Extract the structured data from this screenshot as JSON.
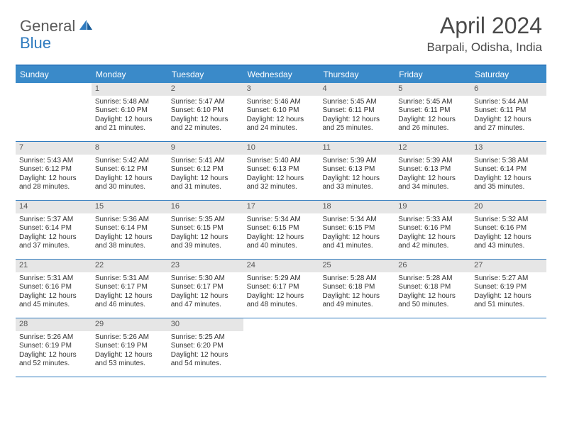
{
  "logo": {
    "general": "General",
    "blue": "Blue"
  },
  "header": {
    "title": "April 2024",
    "location": "Barpali, Odisha, India"
  },
  "colors": {
    "brand_blue": "#3a8ac9",
    "border_blue": "#2f7bbf",
    "daynum_bg": "#e6e6e6",
    "text": "#333333",
    "header_text": "#4a4a4a"
  },
  "daysOfWeek": [
    "Sunday",
    "Monday",
    "Tuesday",
    "Wednesday",
    "Thursday",
    "Friday",
    "Saturday"
  ],
  "weeks": [
    [
      {
        "empty": true
      },
      {
        "n": "1",
        "sr": "Sunrise: 5:48 AM",
        "ss": "Sunset: 6:10 PM",
        "d1": "Daylight: 12 hours",
        "d2": "and 21 minutes."
      },
      {
        "n": "2",
        "sr": "Sunrise: 5:47 AM",
        "ss": "Sunset: 6:10 PM",
        "d1": "Daylight: 12 hours",
        "d2": "and 22 minutes."
      },
      {
        "n": "3",
        "sr": "Sunrise: 5:46 AM",
        "ss": "Sunset: 6:10 PM",
        "d1": "Daylight: 12 hours",
        "d2": "and 24 minutes."
      },
      {
        "n": "4",
        "sr": "Sunrise: 5:45 AM",
        "ss": "Sunset: 6:11 PM",
        "d1": "Daylight: 12 hours",
        "d2": "and 25 minutes."
      },
      {
        "n": "5",
        "sr": "Sunrise: 5:45 AM",
        "ss": "Sunset: 6:11 PM",
        "d1": "Daylight: 12 hours",
        "d2": "and 26 minutes."
      },
      {
        "n": "6",
        "sr": "Sunrise: 5:44 AM",
        "ss": "Sunset: 6:11 PM",
        "d1": "Daylight: 12 hours",
        "d2": "and 27 minutes."
      }
    ],
    [
      {
        "n": "7",
        "sr": "Sunrise: 5:43 AM",
        "ss": "Sunset: 6:12 PM",
        "d1": "Daylight: 12 hours",
        "d2": "and 28 minutes."
      },
      {
        "n": "8",
        "sr": "Sunrise: 5:42 AM",
        "ss": "Sunset: 6:12 PM",
        "d1": "Daylight: 12 hours",
        "d2": "and 30 minutes."
      },
      {
        "n": "9",
        "sr": "Sunrise: 5:41 AM",
        "ss": "Sunset: 6:12 PM",
        "d1": "Daylight: 12 hours",
        "d2": "and 31 minutes."
      },
      {
        "n": "10",
        "sr": "Sunrise: 5:40 AM",
        "ss": "Sunset: 6:13 PM",
        "d1": "Daylight: 12 hours",
        "d2": "and 32 minutes."
      },
      {
        "n": "11",
        "sr": "Sunrise: 5:39 AM",
        "ss": "Sunset: 6:13 PM",
        "d1": "Daylight: 12 hours",
        "d2": "and 33 minutes."
      },
      {
        "n": "12",
        "sr": "Sunrise: 5:39 AM",
        "ss": "Sunset: 6:13 PM",
        "d1": "Daylight: 12 hours",
        "d2": "and 34 minutes."
      },
      {
        "n": "13",
        "sr": "Sunrise: 5:38 AM",
        "ss": "Sunset: 6:14 PM",
        "d1": "Daylight: 12 hours",
        "d2": "and 35 minutes."
      }
    ],
    [
      {
        "n": "14",
        "sr": "Sunrise: 5:37 AM",
        "ss": "Sunset: 6:14 PM",
        "d1": "Daylight: 12 hours",
        "d2": "and 37 minutes."
      },
      {
        "n": "15",
        "sr": "Sunrise: 5:36 AM",
        "ss": "Sunset: 6:14 PM",
        "d1": "Daylight: 12 hours",
        "d2": "and 38 minutes."
      },
      {
        "n": "16",
        "sr": "Sunrise: 5:35 AM",
        "ss": "Sunset: 6:15 PM",
        "d1": "Daylight: 12 hours",
        "d2": "and 39 minutes."
      },
      {
        "n": "17",
        "sr": "Sunrise: 5:34 AM",
        "ss": "Sunset: 6:15 PM",
        "d1": "Daylight: 12 hours",
        "d2": "and 40 minutes."
      },
      {
        "n": "18",
        "sr": "Sunrise: 5:34 AM",
        "ss": "Sunset: 6:15 PM",
        "d1": "Daylight: 12 hours",
        "d2": "and 41 minutes."
      },
      {
        "n": "19",
        "sr": "Sunrise: 5:33 AM",
        "ss": "Sunset: 6:16 PM",
        "d1": "Daylight: 12 hours",
        "d2": "and 42 minutes."
      },
      {
        "n": "20",
        "sr": "Sunrise: 5:32 AM",
        "ss": "Sunset: 6:16 PM",
        "d1": "Daylight: 12 hours",
        "d2": "and 43 minutes."
      }
    ],
    [
      {
        "n": "21",
        "sr": "Sunrise: 5:31 AM",
        "ss": "Sunset: 6:16 PM",
        "d1": "Daylight: 12 hours",
        "d2": "and 45 minutes."
      },
      {
        "n": "22",
        "sr": "Sunrise: 5:31 AM",
        "ss": "Sunset: 6:17 PM",
        "d1": "Daylight: 12 hours",
        "d2": "and 46 minutes."
      },
      {
        "n": "23",
        "sr": "Sunrise: 5:30 AM",
        "ss": "Sunset: 6:17 PM",
        "d1": "Daylight: 12 hours",
        "d2": "and 47 minutes."
      },
      {
        "n": "24",
        "sr": "Sunrise: 5:29 AM",
        "ss": "Sunset: 6:17 PM",
        "d1": "Daylight: 12 hours",
        "d2": "and 48 minutes."
      },
      {
        "n": "25",
        "sr": "Sunrise: 5:28 AM",
        "ss": "Sunset: 6:18 PM",
        "d1": "Daylight: 12 hours",
        "d2": "and 49 minutes."
      },
      {
        "n": "26",
        "sr": "Sunrise: 5:28 AM",
        "ss": "Sunset: 6:18 PM",
        "d1": "Daylight: 12 hours",
        "d2": "and 50 minutes."
      },
      {
        "n": "27",
        "sr": "Sunrise: 5:27 AM",
        "ss": "Sunset: 6:19 PM",
        "d1": "Daylight: 12 hours",
        "d2": "and 51 minutes."
      }
    ],
    [
      {
        "n": "28",
        "sr": "Sunrise: 5:26 AM",
        "ss": "Sunset: 6:19 PM",
        "d1": "Daylight: 12 hours",
        "d2": "and 52 minutes."
      },
      {
        "n": "29",
        "sr": "Sunrise: 5:26 AM",
        "ss": "Sunset: 6:19 PM",
        "d1": "Daylight: 12 hours",
        "d2": "and 53 minutes."
      },
      {
        "n": "30",
        "sr": "Sunrise: 5:25 AM",
        "ss": "Sunset: 6:20 PM",
        "d1": "Daylight: 12 hours",
        "d2": "and 54 minutes."
      },
      {
        "empty": true
      },
      {
        "empty": true
      },
      {
        "empty": true
      },
      {
        "empty": true
      }
    ]
  ]
}
